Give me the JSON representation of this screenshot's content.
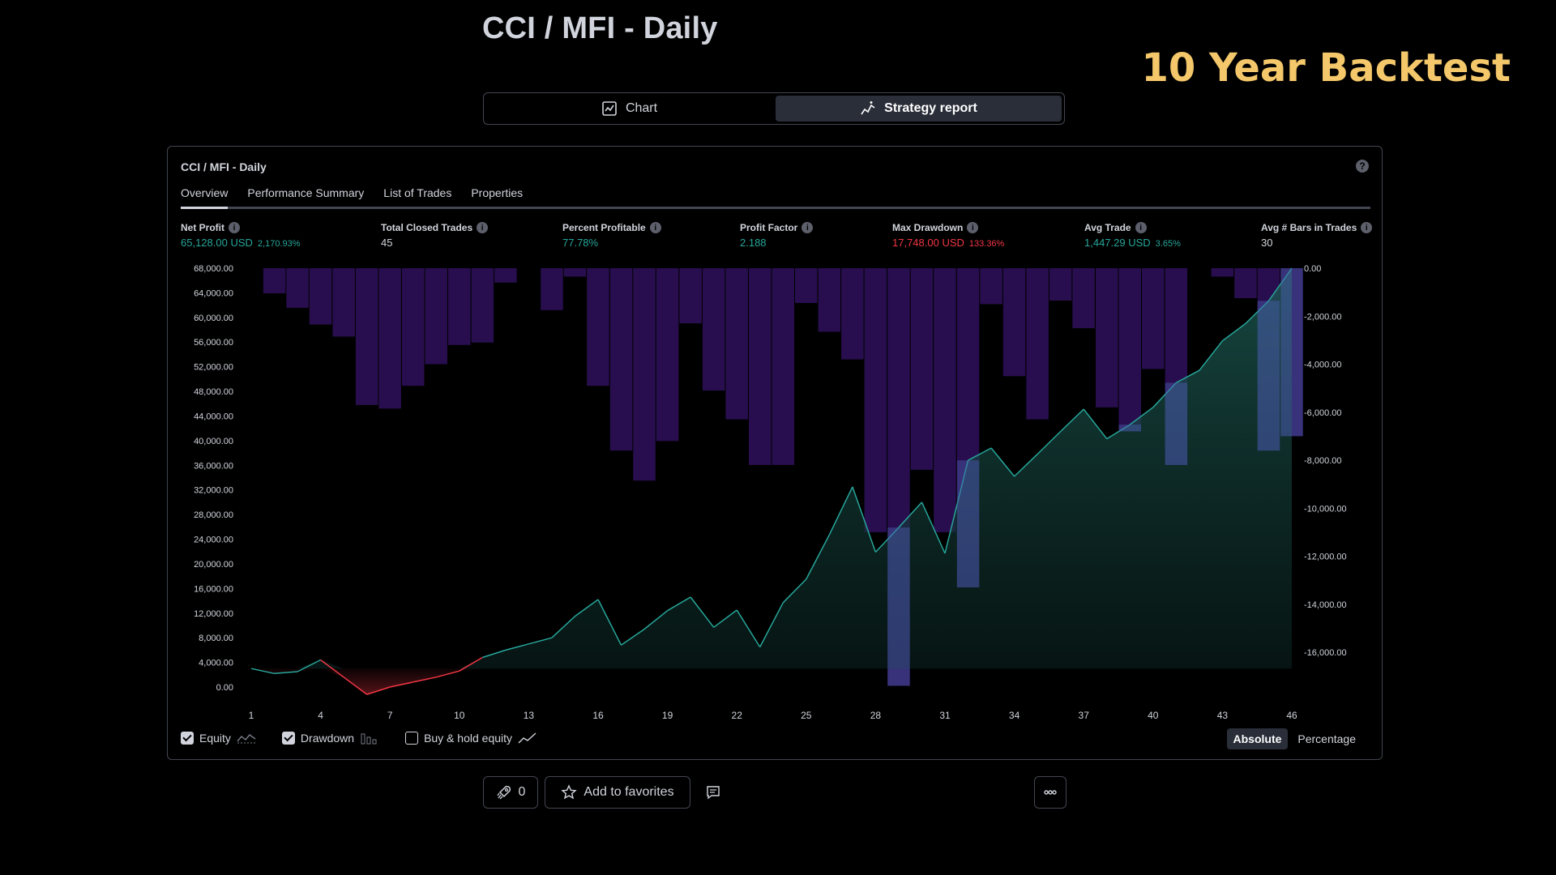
{
  "page": {
    "title": "CCI / MFI - Daily",
    "corner_title": "10 Year Backtest"
  },
  "view_toggle": {
    "chart_label": "Chart",
    "strategy_report_label": "Strategy report"
  },
  "report": {
    "title": "CCI / MFI - Daily",
    "tabs": [
      "Overview",
      "Performance Summary",
      "List of Trades",
      "Properties"
    ],
    "metrics": [
      {
        "label": "Net Profit",
        "value": "65,128.00 USD",
        "sub": "2,170.93%",
        "color": "#26a69a"
      },
      {
        "label": "Total Closed Trades",
        "value": "45",
        "sub": "",
        "color": "#d1d4dc"
      },
      {
        "label": "Percent Profitable",
        "value": "77.78%",
        "sub": "",
        "color": "#26a69a"
      },
      {
        "label": "Profit Factor",
        "value": "2.188",
        "sub": "",
        "color": "#26a69a"
      },
      {
        "label": "Max Drawdown",
        "value": "17,748.00 USD",
        "sub": "133.36%",
        "color": "#f23645"
      },
      {
        "label": "Avg Trade",
        "value": "1,447.29 USD",
        "sub": "3.65%",
        "color": "#26a69a"
      },
      {
        "label": "Avg # Bars in Trades",
        "value": "30",
        "sub": "",
        "color": "#d1d4dc"
      }
    ],
    "legend": {
      "equity": "Equity",
      "drawdown": "Drawdown",
      "buy_hold": "Buy & hold equity"
    },
    "mode": {
      "absolute": "Absolute",
      "percentage": "Percentage"
    }
  },
  "bottom": {
    "boost_count": "0",
    "favorites_label": "Add to favorites"
  },
  "chart_data": {
    "type": "area",
    "x_ticks": [
      1,
      4,
      7,
      10,
      13,
      16,
      19,
      22,
      25,
      28,
      31,
      34,
      37,
      40,
      43,
      46
    ],
    "left_axis": {
      "ylim": [
        0,
        68000
      ],
      "ticks": [
        "68,000.00",
        "64,000.00",
        "60,000.00",
        "56,000.00",
        "52,000.00",
        "48,000.00",
        "44,000.00",
        "40,000.00",
        "36,000.00",
        "32,000.00",
        "28,000.00",
        "24,000.00",
        "20,000.00",
        "16,000.00",
        "12,000.00",
        "8,000.00",
        "4,000.00",
        "0.00"
      ]
    },
    "right_axis": {
      "ylim": [
        -17500,
        0
      ],
      "ticks": [
        "0.00",
        "-2,000.00",
        "-4,000.00",
        "-6,000.00",
        "-8,000.00",
        "-10,000.00",
        "-12,000.00",
        "-14,000.00",
        "-16,000.00"
      ]
    },
    "series": [
      {
        "name": "Equity",
        "x": [
          1,
          2,
          3,
          4,
          5,
          6,
          7,
          8,
          9,
          10,
          11,
          12,
          13,
          14,
          15,
          16,
          17,
          18,
          19,
          20,
          21,
          22,
          23,
          24,
          25,
          26,
          27,
          28,
          29,
          30,
          31,
          32,
          33,
          34,
          35,
          36,
          37,
          38,
          39,
          40,
          41,
          42,
          43,
          44,
          45,
          46
        ],
        "values": [
          3000,
          2200,
          2500,
          4400,
          1600,
          -1200,
          0,
          800,
          1600,
          2600,
          4800,
          6000,
          7000,
          8000,
          11500,
          14200,
          6800,
          9400,
          12400,
          14600,
          9700,
          12500,
          6500,
          13700,
          17500,
          24700,
          32500,
          21900,
          25900,
          30000,
          21700,
          36800,
          38800,
          34200,
          37800,
          41500,
          45100,
          40300,
          42600,
          45400,
          49400,
          51400,
          56200,
          59000,
          62700,
          68000
        ]
      },
      {
        "name": "Drawdown",
        "values": [
          0,
          -1050,
          -1650,
          -2350,
          -2850,
          -5700,
          -5850,
          -4900,
          -4000,
          -3200,
          -3100,
          -600,
          0,
          -1750,
          -350,
          -4900,
          -7600,
          -8850,
          -7200,
          -2300,
          -5100,
          -6300,
          -8200,
          -8200,
          -1450,
          -2650,
          -3800,
          -11000,
          -17400,
          -8400,
          -11000,
          -13300,
          -1500,
          -4500,
          -6300,
          -1350,
          -2500,
          -5800,
          -6800,
          -4200,
          -8200,
          0,
          -350,
          -1250,
          -7600,
          -7000
        ]
      }
    ]
  }
}
